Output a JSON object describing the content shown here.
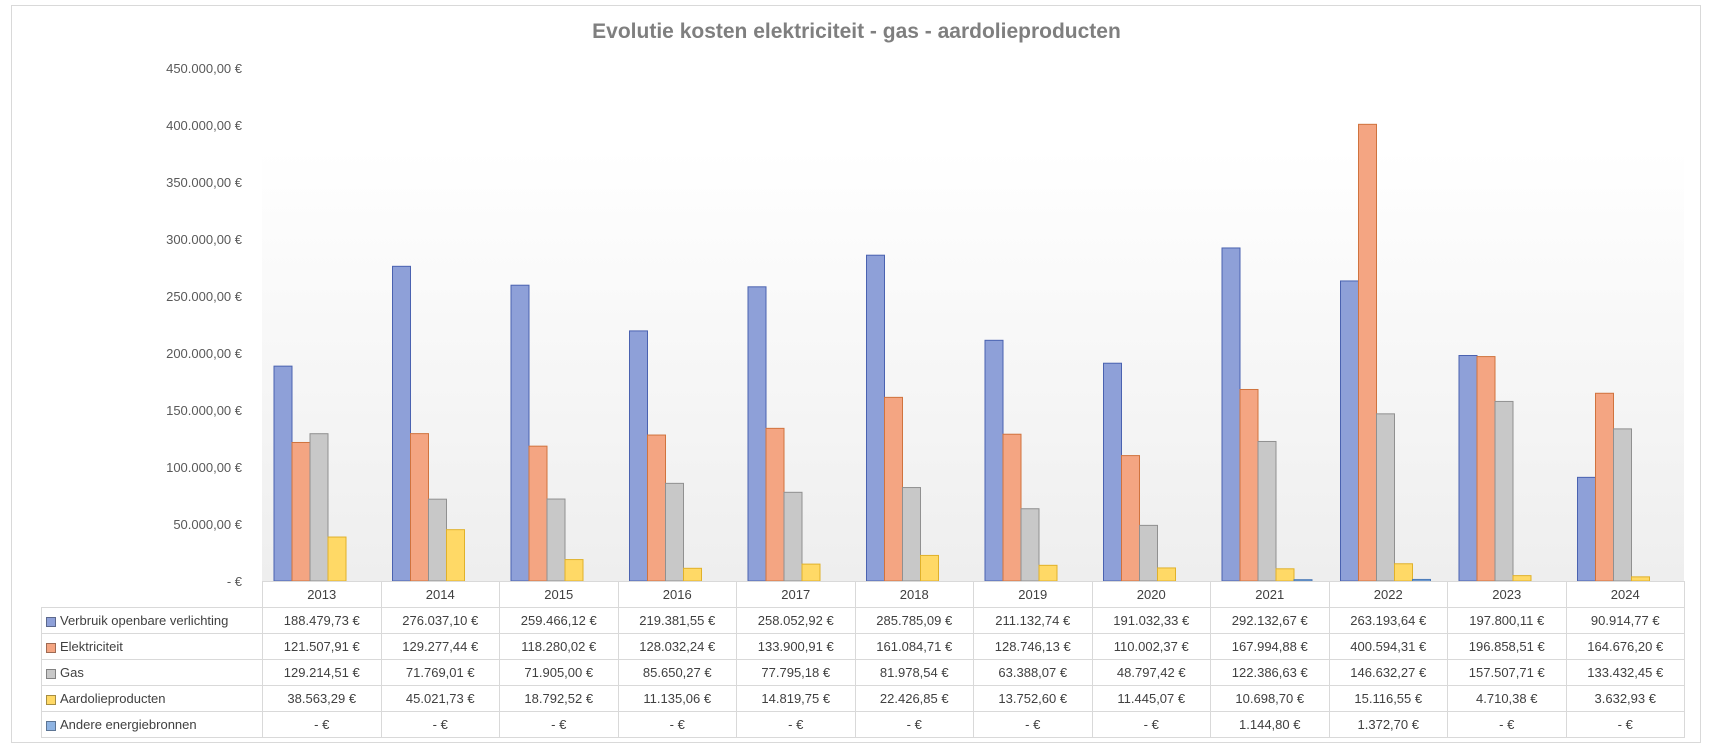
{
  "chart_data": {
    "type": "bar",
    "title": "Evolutie kosten elektriciteit - gas - aardolieproducten",
    "categories": [
      "2013",
      "2014",
      "2015",
      "2016",
      "2017",
      "2018",
      "2019",
      "2020",
      "2021",
      "2022",
      "2023",
      "2024"
    ],
    "ylim": [
      0,
      450000
    ],
    "yticks": [
      0,
      50000,
      100000,
      150000,
      200000,
      250000,
      300000,
      350000,
      400000,
      450000
    ],
    "ytick_labels": [
      "-  €",
      "50.000,00 €",
      "100.000,00 €",
      "150.000,00 €",
      "200.000,00 €",
      "250.000,00 €",
      "300.000,00 €",
      "350.000,00 €",
      "400.000,00 €",
      "450.000,00 €"
    ],
    "legend_placement": "data table below chart",
    "grid": false,
    "series": [
      {
        "name": "Verbruik openbare verlichting",
        "color": "#8ea0d8",
        "border": "#4a62b0",
        "values": [
          188479.73,
          276037.1,
          259466.12,
          219381.55,
          258052.92,
          285785.09,
          211132.74,
          191032.33,
          292132.67,
          263193.64,
          197800.11,
          90914.77
        ],
        "labels": [
          "188.479,73 €",
          "276.037,10 €",
          "259.466,12 €",
          "219.381,55 €",
          "258.052,92 €",
          "285.785,09 €",
          "211.132,74 €",
          "191.032,33 €",
          "292.132,67 €",
          "263.193,64 €",
          "197.800,11 €",
          "90.914,77 €"
        ]
      },
      {
        "name": "Elektriciteit",
        "color": "#f4a582",
        "border": "#d0733e",
        "values": [
          121507.91,
          129277.44,
          118280.02,
          128032.24,
          133900.91,
          161084.71,
          128746.13,
          110002.37,
          167994.88,
          400594.31,
          196858.51,
          164676.2
        ],
        "labels": [
          "121.507,91 €",
          "129.277,44 €",
          "118.280,02 €",
          "128.032,24 €",
          "133.900,91 €",
          "161.084,71 €",
          "128.746,13 €",
          "110.002,37 €",
          "167.994,88 €",
          "400.594,31 €",
          "196.858,51 €",
          "164.676,20 €"
        ]
      },
      {
        "name": "Gas",
        "color": "#c8c8c8",
        "border": "#909090",
        "values": [
          129214.51,
          71769.01,
          71905.0,
          85650.27,
          77795.18,
          81978.54,
          63388.07,
          48797.42,
          122386.63,
          146632.27,
          157507.71,
          133432.45
        ],
        "labels": [
          "129.214,51 €",
          "71.769,01 €",
          "71.905,00 €",
          "85.650,27 €",
          "77.795,18 €",
          "81.978,54 €",
          "63.388,07 €",
          "48.797,42 €",
          "122.386,63 €",
          "146.632,27 €",
          "157.507,71 €",
          "133.432,45 €"
        ]
      },
      {
        "name": "Aardolieproducten",
        "color": "#ffd966",
        "border": "#e0b12a",
        "values": [
          38563.29,
          45021.73,
          18792.52,
          11135.06,
          14819.75,
          22426.85,
          13752.6,
          11445.07,
          10698.7,
          15116.55,
          4710.38,
          3632.93
        ],
        "labels": [
          "38.563,29 €",
          "45.021,73 €",
          "18.792,52 €",
          "11.135,06 €",
          "14.819,75 €",
          "22.426,85 €",
          "13.752,60 €",
          "11.445,07 €",
          "10.698,70 €",
          "15.116,55 €",
          "4.710,38 €",
          "3.632,93 €"
        ]
      },
      {
        "name": "Andere energiebronnen",
        "color": "#8fb4e3",
        "border": "#4a7ab8",
        "values": [
          0,
          0,
          0,
          0,
          0,
          0,
          0,
          0,
          1144.8,
          1372.7,
          0,
          0
        ],
        "labels": [
          "-  €",
          "-  €",
          "-  €",
          "-  €",
          "-  €",
          "-  €",
          "-  €",
          "-  €",
          "1.144,80 €",
          "1.372,70 €",
          "-  €",
          "-  €"
        ]
      }
    ]
  }
}
